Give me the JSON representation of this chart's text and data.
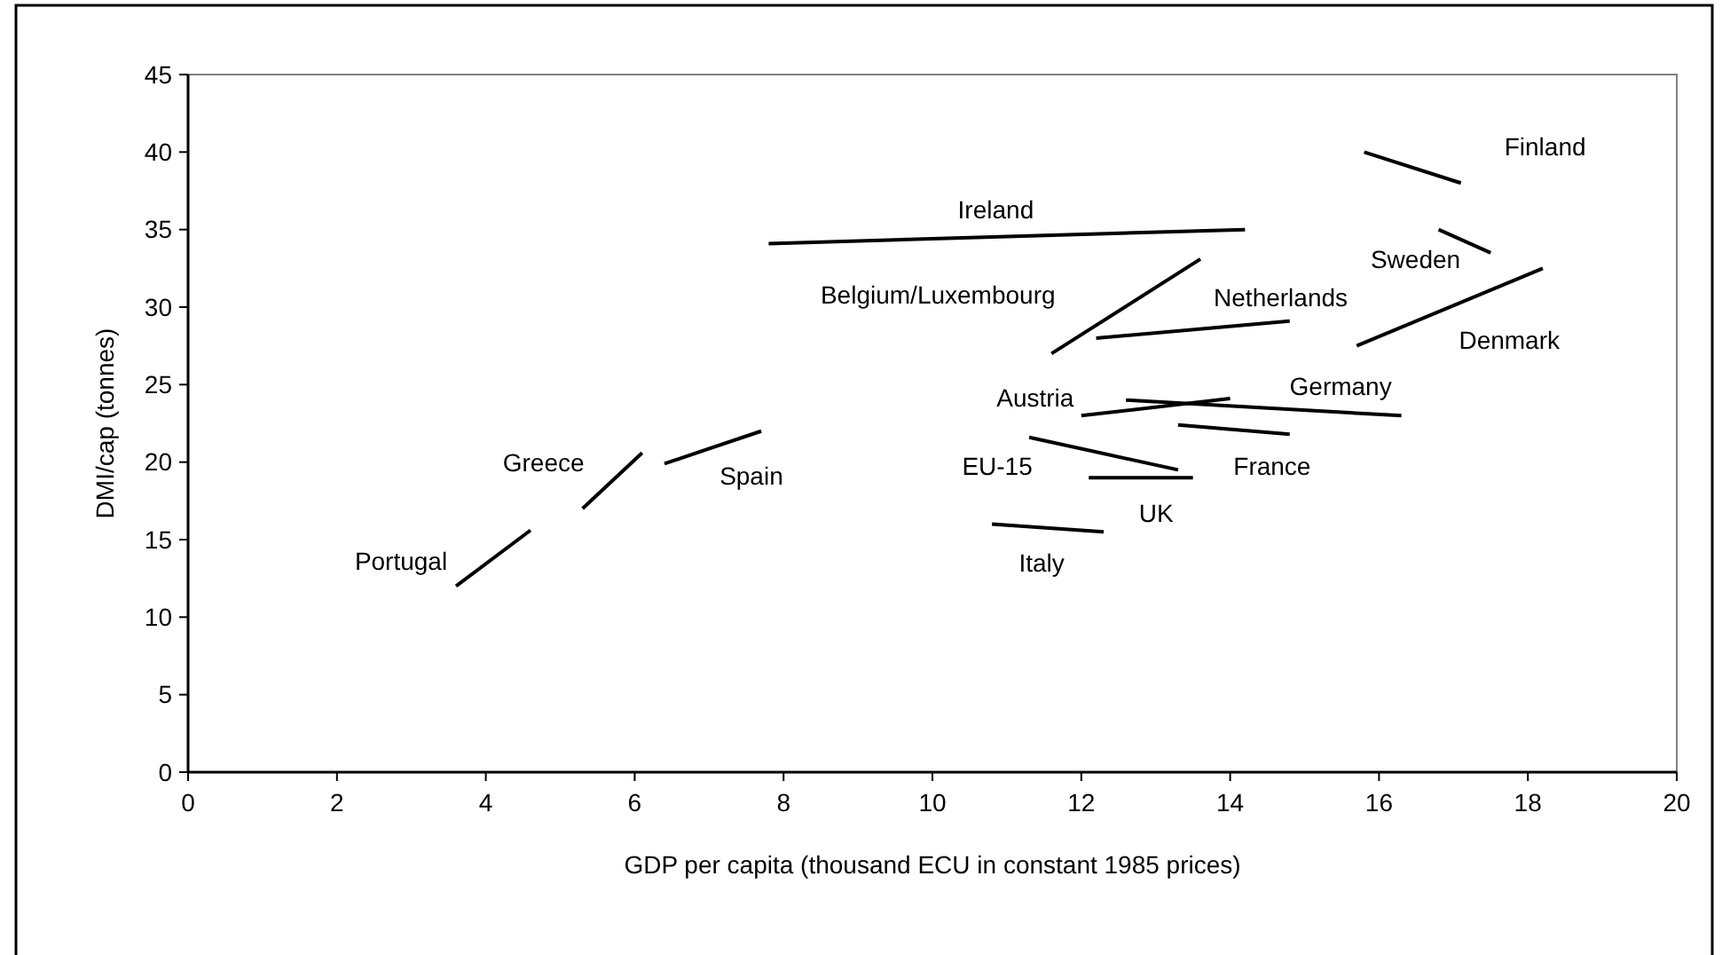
{
  "chart_data": {
    "type": "line",
    "xlabel": "GDP per capita (thousand ECU in constant 1985 prices)",
    "ylabel": "DMI/cap (tonnes)",
    "xlim": [
      0,
      20
    ],
    "xticks": [
      0,
      2,
      4,
      6,
      8,
      10,
      12,
      14,
      16,
      18,
      20
    ],
    "ylim": [
      0,
      45
    ],
    "yticks": [
      0,
      5,
      10,
      15,
      20,
      25,
      30,
      35,
      40,
      45
    ],
    "grid": false,
    "marker": "none",
    "line_style": "solid",
    "series": [
      {
        "name": "Portugal",
        "color": "#000000",
        "x": [
          3.6,
          4.6
        ],
        "values": [
          12.0,
          15.6
        ]
      },
      {
        "name": "Greece",
        "color": "#000000",
        "x": [
          5.3,
          6.1
        ],
        "values": [
          17.0,
          20.6
        ]
      },
      {
        "name": "Spain",
        "color": "#000000",
        "x": [
          6.4,
          7.7
        ],
        "values": [
          19.9,
          22.0
        ]
      },
      {
        "name": "Ireland",
        "color": "#000000",
        "x": [
          7.8,
          14.2
        ],
        "values": [
          34.1,
          35.0
        ]
      },
      {
        "name": "Belgium/Luxembourg",
        "color": "#000000",
        "x": [
          11.6,
          13.6
        ],
        "values": [
          27.0,
          33.1
        ]
      },
      {
        "name": "Netherlands",
        "color": "#000000",
        "x": [
          12.2,
          14.8
        ],
        "values": [
          28.0,
          29.1
        ]
      },
      {
        "name": "Austria",
        "color": "#000000",
        "x": [
          12.0,
          14.0
        ],
        "values": [
          23.0,
          24.1
        ]
      },
      {
        "name": "Germany",
        "color": "#000000",
        "x": [
          12.6,
          16.3
        ],
        "values": [
          24.0,
          23.0
        ]
      },
      {
        "name": "France",
        "color": "#000000",
        "x": [
          13.3,
          14.8
        ],
        "values": [
          22.4,
          21.8
        ]
      },
      {
        "name": "EU-15",
        "color": "#000000",
        "x": [
          11.3,
          13.3
        ],
        "values": [
          21.6,
          19.5
        ]
      },
      {
        "name": "UK",
        "color": "#000000",
        "x": [
          12.1,
          13.5
        ],
        "values": [
          19.0,
          19.0
        ]
      },
      {
        "name": "Italy",
        "color": "#000000",
        "x": [
          10.8,
          12.3
        ],
        "values": [
          16.0,
          15.5
        ]
      },
      {
        "name": "Finland",
        "color": "#000000",
        "x": [
          15.8,
          17.1
        ],
        "values": [
          40.0,
          38.0
        ]
      },
      {
        "name": "Sweden",
        "color": "#000000",
        "x": [
          16.8,
          17.5
        ],
        "values": [
          35.0,
          33.5
        ]
      },
      {
        "name": "Denmark",
        "color": "#000000",
        "x": [
          15.7,
          18.2
        ],
        "values": [
          27.5,
          32.5
        ]
      }
    ]
  }
}
